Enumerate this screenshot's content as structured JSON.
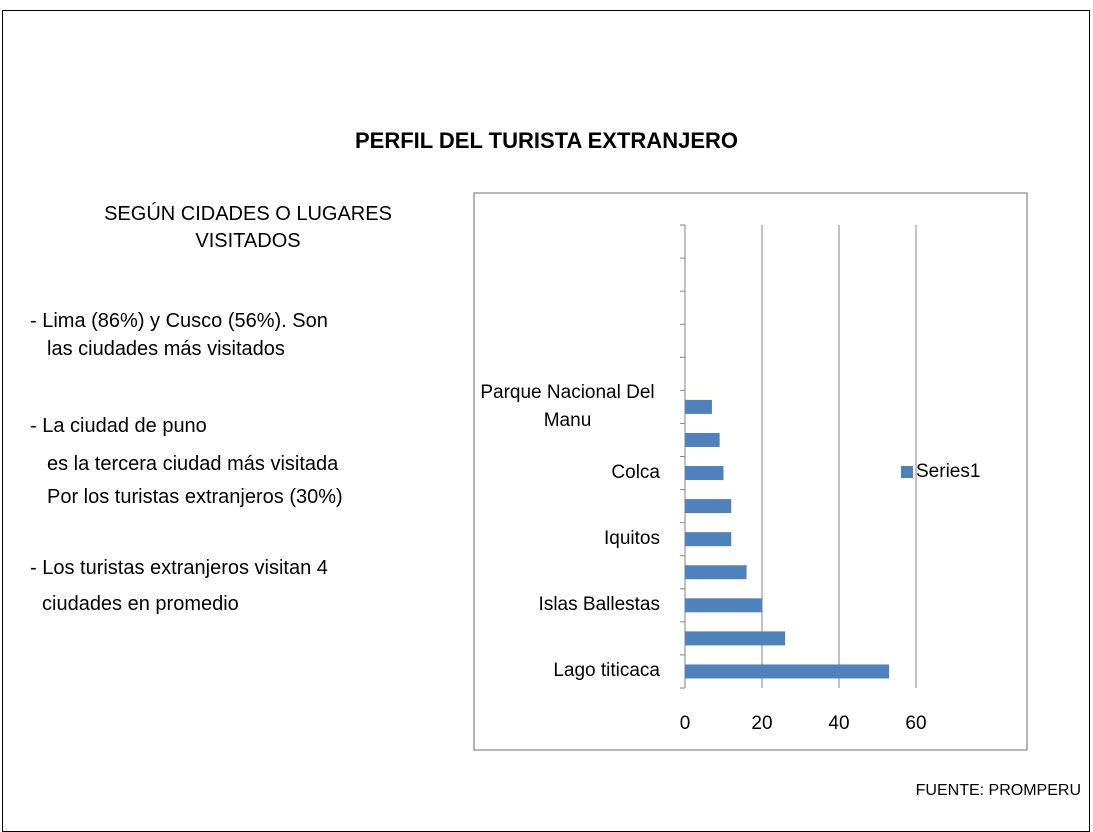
{
  "slide": {
    "title": "PERFIL DEL TURISTA EXTRANJERO",
    "heading_lines": [
      "SEGÚN CIDADES O LUGARES",
      "VISITADOS"
    ],
    "paragraphs": [
      [
        "- Lima (86%) y Cusco (56%). Son",
        "las ciudades más visitados"
      ],
      [
        "- La ciudad de puno",
        "es la tercera ciudad más visitada",
        "Por los turistas extranjeros (30%)"
      ],
      [
        "- Los turistas extranjeros visitan 4",
        "ciudades en promedio"
      ]
    ],
    "source": "FUENTE: PROMPERU"
  },
  "chart_data": {
    "type": "hbar",
    "categories": [
      "Lago titicaca",
      null,
      "Islas Ballestas",
      null,
      "Iquitos",
      null,
      "Colca",
      null,
      "Parque Nacional Del Manu",
      null,
      null,
      null,
      null,
      null
    ],
    "series": [
      {
        "name": "Series1",
        "color": "#4f81bd",
        "values": [
          53,
          26,
          20,
          16,
          12,
          12,
          10,
          9,
          7,
          null,
          null,
          null,
          null,
          null
        ]
      }
    ],
    "xlim": [
      0,
      60
    ],
    "xticks": [
      0,
      20,
      40,
      60
    ],
    "grid": true,
    "legend": "right"
  }
}
